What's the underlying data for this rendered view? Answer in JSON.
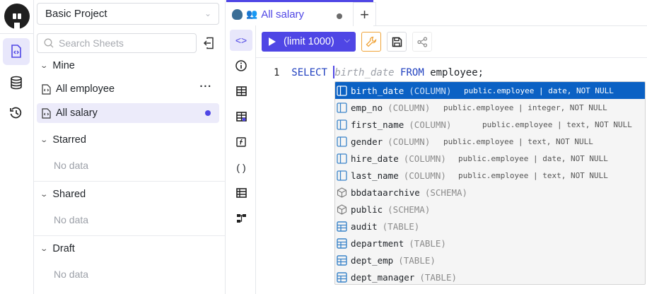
{
  "rail": {
    "items": [
      {
        "icon": "sheet-icon",
        "active": true
      },
      {
        "icon": "database-icon"
      },
      {
        "icon": "history-icon"
      }
    ]
  },
  "sidebar": {
    "project": "Basic Project",
    "search_placeholder": "Search Sheets",
    "sections": [
      {
        "title": "Mine",
        "items": [
          {
            "label": "All employee"
          },
          {
            "label": "All salary",
            "active": true,
            "unsaved": true
          }
        ]
      },
      {
        "title": "Starred",
        "empty": "No data"
      },
      {
        "title": "Shared",
        "empty": "No data"
      },
      {
        "title": "Draft",
        "empty": "No data"
      }
    ]
  },
  "tab": {
    "label": "All salary",
    "add": "+"
  },
  "toolbar": {
    "run_label": "(limit 1000)"
  },
  "editor": {
    "line_number": "1",
    "keyword_select": "SELECT",
    "ghost": "birth_date",
    "keyword_from": "FROM",
    "rest": "employee;"
  },
  "autocomplete": {
    "items": [
      {
        "name": "birth_date",
        "kind": "(COLUMN)",
        "detail": "public.employee | date, NOT NULL",
        "icon": "column",
        "selected": true
      },
      {
        "name": "emp_no",
        "kind": "(COLUMN)",
        "detail": "public.employee | integer, NOT NULL",
        "icon": "column"
      },
      {
        "name": "first_name",
        "kind": "(COLUMN)",
        "detail": "public.employee | text, NOT NULL",
        "icon": "column"
      },
      {
        "name": "gender",
        "kind": "(COLUMN)",
        "detail": "public.employee | text, NOT NULL",
        "icon": "column"
      },
      {
        "name": "hire_date",
        "kind": "(COLUMN)",
        "detail": "public.employee | date, NOT NULL",
        "icon": "column"
      },
      {
        "name": "last_name",
        "kind": "(COLUMN)",
        "detail": "public.employee | text, NOT NULL",
        "icon": "column"
      },
      {
        "name": "bbdataarchive",
        "kind": "(SCHEMA)",
        "detail": "",
        "icon": "schema"
      },
      {
        "name": "public",
        "kind": "(SCHEMA)",
        "detail": "",
        "icon": "schema"
      },
      {
        "name": "audit",
        "kind": "(TABLE)",
        "detail": "",
        "icon": "table"
      },
      {
        "name": "department",
        "kind": "(TABLE)",
        "detail": "",
        "icon": "table"
      },
      {
        "name": "dept_emp",
        "kind": "(TABLE)",
        "detail": "",
        "icon": "table"
      },
      {
        "name": "dept_manager",
        "kind": "(TABLE)",
        "detail": "",
        "icon": "table"
      }
    ]
  },
  "colors": {
    "accent": "#4f46e5",
    "selection": "#0b61c4",
    "admin_button": "#f59e0b"
  }
}
